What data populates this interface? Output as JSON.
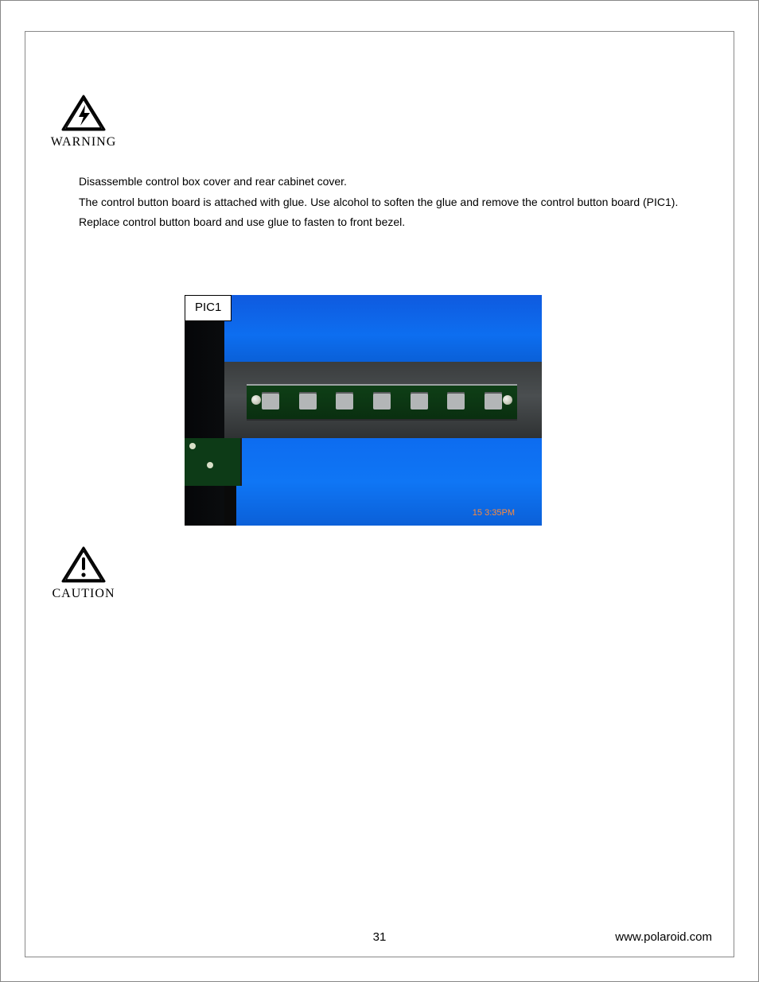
{
  "warning": {
    "label": "WARNING"
  },
  "body": {
    "p1": "Disassemble control box cover and rear cabinet cover.",
    "p2": "The control button board is attached with glue.  Use alcohol to soften the glue and remove the control button board (PIC1).",
    "p3": "Replace control button board and use glue to fasten to front bezel."
  },
  "figure": {
    "label": "PIC1",
    "timestamp": "15   3:35PM",
    "pcb_button_count": 7,
    "colors": {
      "screen_blue_top": "#0f5adf",
      "screen_blue_bottom": "#0d6ef0",
      "pcb_green": "#0e3f16",
      "bezel_grey": "#3a3d3e",
      "button_grey": "#b3b6b7",
      "timestamp_orange": "#ff8a3a"
    }
  },
  "caution": {
    "label": "CAUTION"
  },
  "footer": {
    "page_number": "31",
    "url": "www.polaroid.com"
  },
  "icons": {
    "warning": "warning-triangle-bolt-icon",
    "caution": "caution-triangle-bang-icon"
  }
}
